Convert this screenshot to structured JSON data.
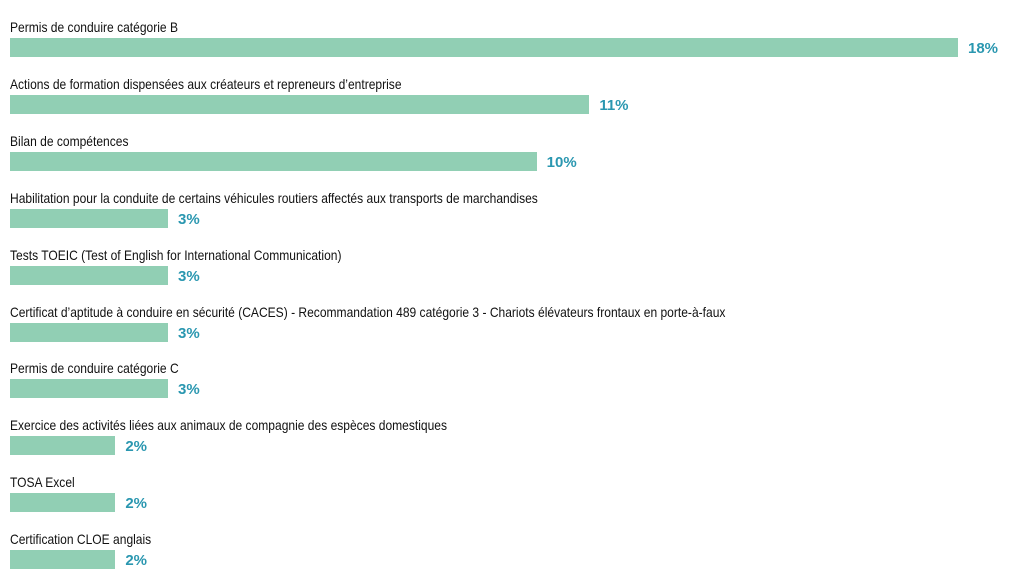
{
  "chart_data": {
    "type": "bar",
    "orientation": "horizontal",
    "title": "",
    "xlabel": "",
    "ylabel": "",
    "xlim": [
      0,
      18
    ],
    "grid": false,
    "legend": "none",
    "bar_color": "#91cfb4",
    "value_color": "#2a97b0",
    "categories": [
      "Permis de conduire catégorie B",
      "Actions de formation dispensées aux créateurs et repreneurs d’entreprise",
      "Bilan de compétences",
      "Habilitation pour la conduite de certains véhicules routiers affectés aux transports de marchandises",
      "Tests TOEIC (Test of English for International Communication)",
      "Certificat d’aptitude à conduire en sécurité (CACES) - Recommandation 489 catégorie 3 - Chariots élévateurs frontaux en porte-à-faux",
      "Permis de conduire catégorie C",
      "Exercice des activités liées aux animaux de compagnie des espèces domestiques",
      "TOSA Excel",
      "Certification CLOE anglais"
    ],
    "values": [
      18,
      11,
      10,
      3,
      3,
      3,
      3,
      2,
      2,
      2
    ],
    "value_labels": [
      "18%",
      "11%",
      "10%",
      "3%",
      "3%",
      "3%",
      "3%",
      "2%",
      "2%",
      "2%"
    ]
  }
}
